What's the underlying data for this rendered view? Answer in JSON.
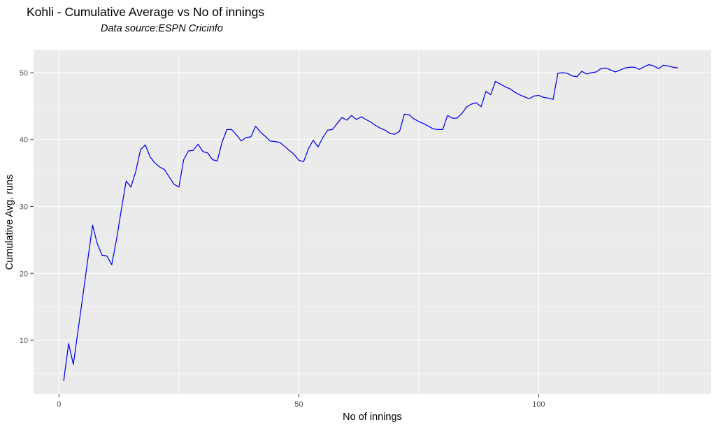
{
  "chart_data": {
    "type": "line",
    "title": "Kohli - Cumulative Average vs No of innings",
    "subtitle": "Data source:ESPN Cricinfo",
    "xlabel": "No of innings",
    "ylabel": "Cumulative Avg. runs",
    "legend": "none",
    "grid": true,
    "xlim": [
      -5.3,
      135.95
    ],
    "ylim": [
      1.96,
      53.34
    ],
    "x_ticks": [
      0,
      50,
      100
    ],
    "x_minor_gridlines": [
      25,
      75,
      125
    ],
    "y_ticks": [
      10,
      20,
      30,
      40,
      50
    ],
    "y_minor_gridlines": [
      5,
      15,
      25,
      35,
      45
    ],
    "colors": {
      "panel_background": "#EBEBEB",
      "gridline": "#FFFFFF",
      "line": "#0000F5",
      "tick_label": "#4D4D4D",
      "tick_mark": "#333333",
      "text": "#000000"
    },
    "series": [
      {
        "name": "cumulative-average",
        "x": [
          1,
          2,
          3,
          4,
          5,
          6,
          7,
          8,
          9,
          10,
          11,
          12,
          13,
          14,
          15,
          16,
          17,
          18,
          19,
          20,
          21,
          22,
          23,
          24,
          25,
          26,
          27,
          28,
          29,
          30,
          31,
          32,
          33,
          34,
          35,
          36,
          37,
          38,
          39,
          40,
          41,
          42,
          43,
          44,
          45,
          46,
          47,
          48,
          49,
          50,
          51,
          52,
          53,
          54,
          55,
          56,
          57,
          58,
          59,
          60,
          61,
          62,
          63,
          64,
          65,
          66,
          67,
          68,
          69,
          70,
          71,
          72,
          73,
          74,
          75,
          76,
          77,
          78,
          79,
          80,
          81,
          82,
          83,
          84,
          85,
          86,
          87,
          88,
          89,
          90,
          91,
          92,
          93,
          94,
          95,
          96,
          97,
          98,
          99,
          100,
          101,
          102,
          103,
          104,
          105,
          106,
          107,
          108,
          109,
          110,
          111,
          112,
          113,
          114,
          115,
          116,
          117,
          118,
          119,
          120,
          121,
          122,
          123,
          124,
          125,
          126,
          127,
          128,
          129
        ],
        "y": [
          4.0,
          9.5,
          6.4,
          11.6,
          16.8,
          22.0,
          27.2,
          24.4,
          22.7,
          22.6,
          21.3,
          25.1,
          29.5,
          33.8,
          32.9,
          35.2,
          38.5,
          39.2,
          37.4,
          36.5,
          35.9,
          35.5,
          34.4,
          33.3,
          32.9,
          37.0,
          38.3,
          38.4,
          39.3,
          38.2,
          38.0,
          37.0,
          36.8,
          39.6,
          41.5,
          41.5,
          40.7,
          39.8,
          40.3,
          40.4,
          42.0,
          41.1,
          40.5,
          39.8,
          39.7,
          39.6,
          39.0,
          38.4,
          37.8,
          36.9,
          36.7,
          38.6,
          39.9,
          38.9,
          40.3,
          41.4,
          41.5,
          42.4,
          43.3,
          42.9,
          43.6,
          43.0,
          43.4,
          43.0,
          42.6,
          42.1,
          41.7,
          41.4,
          40.9,
          40.8,
          41.2,
          43.8,
          43.7,
          43.1,
          42.7,
          42.4,
          42.0,
          41.6,
          41.5,
          41.5,
          43.6,
          43.2,
          43.2,
          43.9,
          44.9,
          45.3,
          45.5,
          44.9,
          47.2,
          46.7,
          48.7,
          48.3,
          47.9,
          47.6,
          47.1,
          46.7,
          46.4,
          46.1,
          46.5,
          46.6,
          46.3,
          46.2,
          46.0,
          49.9,
          50.0,
          49.9,
          49.5,
          49.4,
          50.2,
          49.8,
          50.0,
          50.1,
          50.6,
          50.7,
          50.4,
          50.1,
          50.4,
          50.7,
          50.8,
          50.8,
          50.5,
          50.9,
          51.2,
          51.0,
          50.6,
          51.1,
          51.0,
          50.8,
          50.7
        ]
      }
    ]
  }
}
